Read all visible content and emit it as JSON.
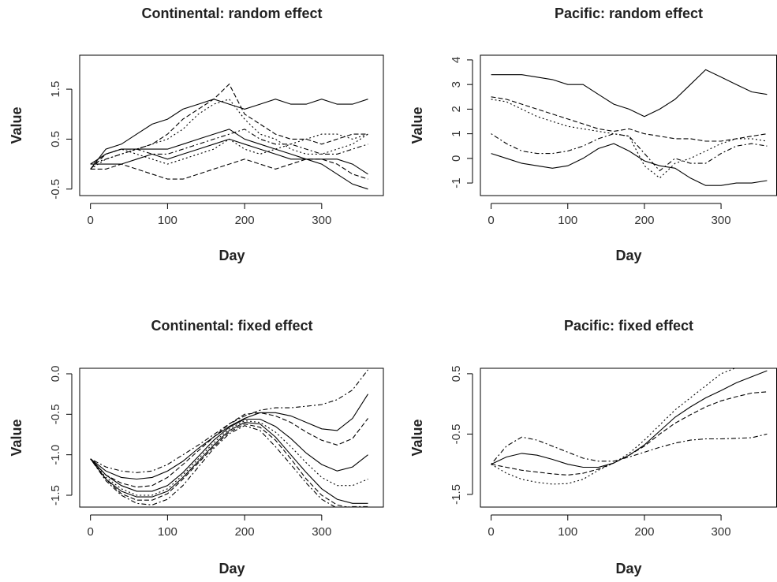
{
  "chart_data": [
    {
      "type": "line",
      "title": "Continental: random effect",
      "xlabel": "Day",
      "ylabel": "Value",
      "x": [
        0,
        20,
        40,
        60,
        80,
        100,
        120,
        140,
        160,
        180,
        200,
        220,
        240,
        260,
        280,
        300,
        320,
        340,
        360
      ],
      "xlim": [
        -14,
        380
      ],
      "ylim": [
        -0.63,
        2.18
      ],
      "xticks": [
        0,
        100,
        200,
        300
      ],
      "yticks": [
        -0.5,
        0.5,
        1.5
      ],
      "series": [
        {
          "color": "#000000",
          "dash": "solid",
          "values": [
            -0.1,
            0.3,
            0.4,
            0.6,
            0.8,
            0.9,
            1.1,
            1.2,
            1.3,
            1.2,
            1.1,
            1.2,
            1.3,
            1.2,
            1.2,
            1.3,
            1.2,
            1.2,
            1.3
          ]
        },
        {
          "color": "#000000",
          "dash": "dashed",
          "values": [
            -0.1,
            0.2,
            0.3,
            0.3,
            0.4,
            0.6,
            0.9,
            1.1,
            1.3,
            1.6,
            1.0,
            0.8,
            0.6,
            0.5,
            0.5,
            0.4,
            0.5,
            0.6,
            0.6
          ]
        },
        {
          "color": "#000000",
          "dash": "dotted",
          "values": [
            -0.1,
            0.1,
            0.2,
            0.3,
            0.4,
            0.5,
            0.7,
            1.0,
            1.2,
            1.3,
            0.9,
            0.6,
            0.5,
            0.3,
            0.2,
            0.2,
            0.3,
            0.4,
            0.6
          ]
        },
        {
          "color": "#000000",
          "dash": "solid",
          "values": [
            0,
            0.2,
            0.3,
            0.3,
            0.3,
            0.3,
            0.4,
            0.5,
            0.6,
            0.7,
            0.5,
            0.4,
            0.3,
            0.2,
            0.1,
            0.0,
            -0.2,
            -0.4,
            -0.5
          ]
        },
        {
          "color": "#000000",
          "dash": "dotdash",
          "values": [
            0,
            0.1,
            0.2,
            0.3,
            0.2,
            0.2,
            0.3,
            0.4,
            0.5,
            0.6,
            0.7,
            0.5,
            0.4,
            0.4,
            0.3,
            0.2,
            0.2,
            0.3,
            0.4
          ]
        },
        {
          "color": "#000000",
          "dash": "solid",
          "values": [
            0,
            0,
            0,
            0.1,
            0.2,
            0.1,
            0.2,
            0.3,
            0.4,
            0.5,
            0.4,
            0.3,
            0.2,
            0.1,
            0.1,
            0.1,
            0.1,
            0.0,
            -0.2
          ]
        },
        {
          "color": "#000000",
          "dash": "dashed",
          "values": [
            -0.1,
            -0.1,
            0,
            -0.1,
            -0.2,
            -0.3,
            -0.3,
            -0.2,
            -0.1,
            0,
            0.1,
            0.0,
            -0.1,
            0.0,
            0.1,
            0.1,
            0.0,
            -0.2,
            -0.3
          ]
        },
        {
          "color": "#000000",
          "dash": "dotted",
          "values": [
            0,
            0.2,
            0.3,
            0.2,
            0.1,
            0.0,
            0.1,
            0.2,
            0.3,
            0.5,
            0.3,
            0.2,
            0.3,
            0.4,
            0.5,
            0.6,
            0.6,
            0.5,
            0.6
          ]
        }
      ]
    },
    {
      "type": "line",
      "title": "Pacific: random effect",
      "xlabel": "Day",
      "ylabel": "Value",
      "x": [
        0,
        20,
        40,
        60,
        80,
        100,
        120,
        140,
        160,
        180,
        200,
        220,
        240,
        260,
        280,
        300,
        320,
        340,
        360
      ],
      "xlim": [
        -14,
        373
      ],
      "ylim": [
        -1.51,
        4.19
      ],
      "xticks": [
        0,
        100,
        200,
        300
      ],
      "yticks": [
        -1,
        0,
        1,
        2,
        3,
        4
      ],
      "series": [
        {
          "color": "#000000",
          "dash": "solid",
          "values": [
            3.4,
            3.4,
            3.4,
            3.3,
            3.2,
            3.0,
            3.0,
            2.6,
            2.2,
            2.0,
            1.7,
            2.0,
            2.4,
            3.0,
            3.6,
            3.3,
            3.0,
            2.7,
            2.6
          ]
        },
        {
          "color": "#000000",
          "dash": "dashed",
          "values": [
            2.5,
            2.4,
            2.2,
            2.0,
            1.8,
            1.6,
            1.4,
            1.2,
            1.1,
            1.2,
            1.0,
            0.9,
            0.8,
            0.8,
            0.7,
            0.7,
            0.8,
            0.9,
            1.0
          ]
        },
        {
          "color": "#000000",
          "dash": "dotted",
          "values": [
            2.4,
            2.3,
            2.0,
            1.7,
            1.5,
            1.3,
            1.2,
            1.1,
            1.0,
            0.9,
            -0.3,
            -0.8,
            -0.2,
            0.0,
            0.3,
            0.6,
            0.8,
            0.8,
            0.7
          ]
        },
        {
          "color": "#000000",
          "dash": "dotdash",
          "values": [
            1.0,
            0.6,
            0.3,
            0.2,
            0.2,
            0.3,
            0.5,
            0.8,
            1.0,
            0.9,
            0.2,
            -0.5,
            0.0,
            -0.2,
            -0.2,
            0.2,
            0.5,
            0.6,
            0.5
          ]
        },
        {
          "color": "#000000",
          "dash": "solid",
          "values": [
            0.2,
            0.0,
            -0.2,
            -0.3,
            -0.4,
            -0.3,
            0.0,
            0.4,
            0.6,
            0.3,
            -0.1,
            -0.3,
            -0.4,
            -0.8,
            -1.1,
            -1.1,
            -1.0,
            -1.0,
            -0.9
          ]
        }
      ]
    },
    {
      "type": "line",
      "title": "Continental: fixed effect",
      "xlabel": "Day",
      "ylabel": "Value",
      "x": [
        0,
        20,
        40,
        60,
        80,
        100,
        120,
        140,
        160,
        180,
        200,
        220,
        240,
        260,
        280,
        300,
        320,
        340,
        360
      ],
      "xlim": [
        -14,
        380
      ],
      "ylim": [
        -1.646,
        0.068
      ],
      "xticks": [
        0,
        100,
        200,
        300
      ],
      "yticks": [
        {
          "value": 0,
          "label": "0.0"
        },
        -0.5,
        {
          "value": -1,
          "label": "-1.0"
        },
        -1.5
      ],
      "series": [
        {
          "color": "#000000",
          "dash": "dotdash",
          "values": [
            -1.05,
            -1.15,
            -1.2,
            -1.22,
            -1.2,
            -1.12,
            -1.0,
            -0.88,
            -0.75,
            -0.62,
            -0.52,
            -0.45,
            -0.42,
            -0.42,
            -0.4,
            -0.38,
            -0.32,
            -0.2,
            0.05
          ]
        },
        {
          "color": "#000000",
          "dash": "solid",
          "values": [
            -1.05,
            -1.2,
            -1.28,
            -1.3,
            -1.28,
            -1.2,
            -1.08,
            -0.92,
            -0.78,
            -0.65,
            -0.55,
            -0.48,
            -0.48,
            -0.52,
            -0.6,
            -0.68,
            -0.7,
            -0.55,
            -0.25
          ]
        },
        {
          "color": "#000000",
          "dash": "dashed",
          "values": [
            -1.05,
            -1.25,
            -1.35,
            -1.4,
            -1.38,
            -1.28,
            -1.12,
            -0.95,
            -0.78,
            -0.62,
            -0.5,
            -0.48,
            -0.52,
            -0.6,
            -0.72,
            -0.82,
            -0.88,
            -0.8,
            -0.55
          ]
        },
        {
          "color": "#000000",
          "dash": "solid",
          "values": [
            -1.05,
            -1.25,
            -1.38,
            -1.45,
            -1.45,
            -1.38,
            -1.22,
            -1.02,
            -0.82,
            -0.66,
            -0.56,
            -0.56,
            -0.65,
            -0.8,
            -0.98,
            -1.12,
            -1.2,
            -1.15,
            -1.0
          ]
        },
        {
          "color": "#000000",
          "dash": "dotted",
          "values": [
            -1.05,
            -1.28,
            -1.42,
            -1.5,
            -1.5,
            -1.42,
            -1.25,
            -1.05,
            -0.85,
            -0.68,
            -0.58,
            -0.6,
            -0.72,
            -0.9,
            -1.1,
            -1.28,
            -1.38,
            -1.38,
            -1.3
          ]
        },
        {
          "color": "#000000",
          "dash": "solid",
          "values": [
            -1.05,
            -1.3,
            -1.45,
            -1.52,
            -1.52,
            -1.45,
            -1.28,
            -1.08,
            -0.88,
            -0.7,
            -0.6,
            -0.62,
            -0.78,
            -1.0,
            -1.22,
            -1.42,
            -1.55,
            -1.6,
            -1.6
          ]
        },
        {
          "color": "#000000",
          "dash": "dashed",
          "values": [
            -1.05,
            -1.3,
            -1.48,
            -1.56,
            -1.56,
            -1.48,
            -1.3,
            -1.1,
            -0.9,
            -0.72,
            -0.62,
            -0.66,
            -0.82,
            -1.05,
            -1.3,
            -1.5,
            -1.62,
            -1.66,
            -1.66
          ]
        },
        {
          "color": "#000000",
          "dash": "dotdash",
          "values": [
            -1.05,
            -1.32,
            -1.5,
            -1.6,
            -1.62,
            -1.55,
            -1.38,
            -1.15,
            -0.92,
            -0.74,
            -0.64,
            -0.7,
            -0.9,
            -1.12,
            -1.35,
            -1.55,
            -1.66,
            -1.64,
            -1.64
          ]
        }
      ]
    },
    {
      "type": "line",
      "title": "Pacific: fixed effect",
      "xlabel": "Day",
      "ylabel": "Value",
      "x": [
        0,
        20,
        40,
        60,
        80,
        100,
        120,
        140,
        160,
        180,
        200,
        220,
        240,
        260,
        280,
        300,
        320,
        340,
        360
      ],
      "xlim": [
        -14,
        373
      ],
      "ylim": [
        -1.71,
        0.59
      ],
      "xticks": [
        0,
        100,
        200,
        300
      ],
      "yticks": [
        0.5,
        -0.5,
        -1.5
      ],
      "series": [
        {
          "color": "#000000",
          "dash": "dotdash",
          "values": [
            -1.0,
            -0.7,
            -0.55,
            -0.6,
            -0.7,
            -0.8,
            -0.9,
            -0.95,
            -0.95,
            -0.88,
            -0.8,
            -0.72,
            -0.65,
            -0.6,
            -0.58,
            -0.58,
            -0.57,
            -0.56,
            -0.5
          ]
        },
        {
          "color": "#000000",
          "dash": "solid",
          "values": [
            -1.0,
            -0.88,
            -0.82,
            -0.85,
            -0.92,
            -1.0,
            -1.05,
            -1.05,
            -0.98,
            -0.85,
            -0.68,
            -0.45,
            -0.22,
            -0.05,
            0.1,
            0.22,
            0.35,
            0.45,
            0.55
          ]
        },
        {
          "color": "#000000",
          "dash": "dashed",
          "values": [
            -1.0,
            -1.05,
            -1.1,
            -1.13,
            -1.16,
            -1.18,
            -1.15,
            -1.08,
            -0.98,
            -0.85,
            -0.7,
            -0.5,
            -0.32,
            -0.18,
            -0.05,
            0.05,
            0.12,
            0.18,
            0.2
          ]
        },
        {
          "color": "#000000",
          "dash": "dotted",
          "values": [
            -1.0,
            -1.15,
            -1.25,
            -1.3,
            -1.33,
            -1.32,
            -1.25,
            -1.1,
            -0.98,
            -0.82,
            -0.6,
            -0.35,
            -0.1,
            0.1,
            0.3,
            0.5,
            0.6,
            0.62,
            0.65
          ]
        }
      ]
    }
  ]
}
